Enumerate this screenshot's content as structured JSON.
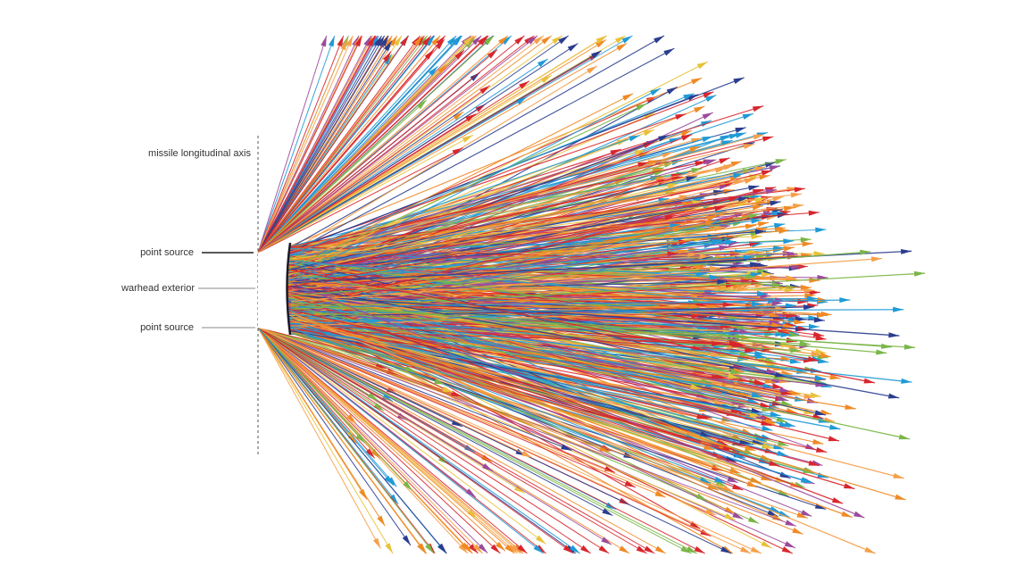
{
  "labels": {
    "axis": "missile longitudinal axis",
    "upper_point_source": "point source",
    "warhead_exterior": "warhead exterior",
    "lower_point_source": "point source"
  }
}
